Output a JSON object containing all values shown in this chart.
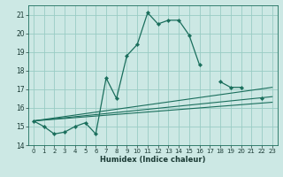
{
  "title": "",
  "xlabel": "Humidex (Indice chaleur)",
  "ylabel": "",
  "bg_color": "#cce8e4",
  "grid_color": "#99ccc4",
  "line_color": "#1a6e5c",
  "xlim": [
    -0.5,
    23.5
  ],
  "ylim": [
    14,
    21.5
  ],
  "yticks": [
    14,
    15,
    16,
    17,
    18,
    19,
    20,
    21
  ],
  "xticks": [
    0,
    1,
    2,
    3,
    4,
    5,
    6,
    7,
    8,
    9,
    10,
    11,
    12,
    13,
    14,
    15,
    16,
    17,
    18,
    19,
    20,
    21,
    22,
    23
  ],
  "series": [
    {
      "x": [
        0,
        1,
        2,
        3,
        4,
        5,
        6,
        7,
        8,
        9,
        10,
        11,
        12,
        13,
        14,
        15,
        16,
        17,
        18,
        19,
        20,
        21,
        22,
        23
      ],
      "y": [
        15.3,
        15.0,
        14.6,
        14.7,
        15.0,
        15.2,
        14.6,
        17.6,
        16.5,
        18.8,
        19.4,
        21.1,
        20.5,
        20.7,
        20.7,
        19.9,
        18.3,
        null,
        17.4,
        17.1,
        17.1,
        null,
        16.5,
        null
      ],
      "marker": true
    },
    {
      "x": [
        0,
        23
      ],
      "y": [
        15.3,
        17.1
      ],
      "marker": false
    },
    {
      "x": [
        0,
        23
      ],
      "y": [
        15.3,
        16.6
      ],
      "marker": false
    },
    {
      "x": [
        0,
        23
      ],
      "y": [
        15.3,
        16.3
      ],
      "marker": false
    }
  ]
}
